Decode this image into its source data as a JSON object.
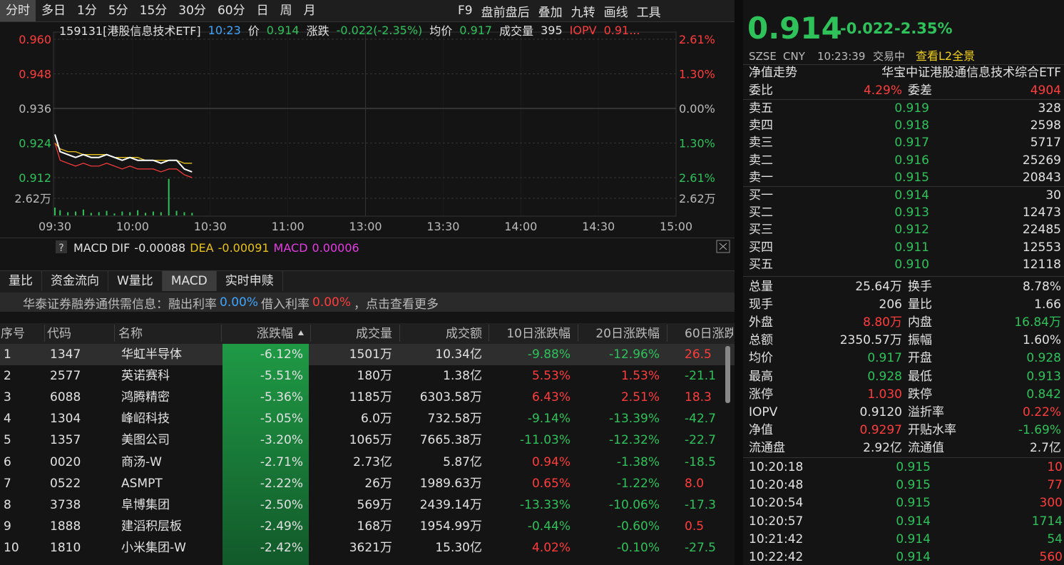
{
  "toolbar": {
    "tabs": [
      "分时",
      "多日",
      "1分",
      "5分",
      "15分",
      "30分",
      "60分",
      "日",
      "周",
      "月"
    ],
    "tools": [
      "F9",
      "盘前盘后",
      "叠加",
      "九转",
      "画线",
      "工具"
    ]
  },
  "chart_header": [
    {
      "text": "159131[港股信息技术ETF]",
      "color": "white"
    },
    {
      "text": "10:23",
      "color": "blue"
    },
    {
      "text": "价",
      "color": "white"
    },
    {
      "text": "0.914",
      "color": "green"
    },
    {
      "text": "涨跌",
      "color": "white"
    },
    {
      "text": "-0.022(-2.35%)",
      "color": "green"
    },
    {
      "text": "均价",
      "color": "white"
    },
    {
      "text": "0.917",
      "color": "green"
    },
    {
      "text": "成交量",
      "color": "white"
    },
    {
      "text": "395",
      "color": "white"
    },
    {
      "text": "IOPV",
      "color": "red"
    },
    {
      "text": "0.91...",
      "color": "red"
    }
  ],
  "intraday": {
    "ylim": [
      0.912,
      0.96
    ],
    "yticks": [
      {
        "value": 0.96,
        "label": "0.960"
      },
      {
        "value": 0.948,
        "label": "0.948"
      },
      {
        "value": 0.936,
        "label": "0.936"
      },
      {
        "value": 0.924,
        "label": "0.924"
      },
      {
        "value": 0.912,
        "label": "0.912"
      }
    ],
    "right_labels": [
      "2.61%",
      "1.30%",
      "0.00%",
      "1.30%",
      "2.61%"
    ],
    "xlim": [
      0,
      240
    ],
    "xticks": [
      {
        "value": 0,
        "label": "09:30"
      },
      {
        "value": 30,
        "label": "10:00"
      },
      {
        "value": 60,
        "label": "10:30"
      },
      {
        "value": 90,
        "label": "11:00"
      },
      {
        "value": 120,
        "label": "13:00"
      },
      {
        "value": 150,
        "label": "13:30"
      },
      {
        "value": 180,
        "label": "14:00"
      },
      {
        "value": 210,
        "label": "14:30"
      },
      {
        "value": 240,
        "label": "15:00"
      }
    ],
    "volume_tick": {
      "value": 2.62,
      "label": "2.62万"
    },
    "x": [
      0,
      2,
      5,
      8,
      11,
      14,
      17,
      20,
      23,
      26,
      29,
      32,
      35,
      38,
      41,
      44,
      47,
      50,
      53
    ],
    "price": [
      0.927,
      0.921,
      0.92,
      0.919,
      0.92,
      0.919,
      0.919,
      0.92,
      0.919,
      0.918,
      0.919,
      0.918,
      0.918,
      0.918,
      0.917,
      0.918,
      0.918,
      0.915,
      0.914
    ],
    "average": [
      0.924,
      0.922,
      0.921,
      0.921,
      0.92,
      0.92,
      0.92,
      0.92,
      0.919,
      0.919,
      0.919,
      0.919,
      0.918,
      0.918,
      0.918,
      0.918,
      0.918,
      0.917,
      0.917
    ],
    "iopv": [
      0.924,
      0.918,
      0.917,
      0.916,
      0.917,
      0.916,
      0.916,
      0.917,
      0.916,
      0.915,
      0.916,
      0.915,
      0.915,
      0.915,
      0.914,
      0.915,
      0.915,
      0.913,
      0.912
    ],
    "volume": [
      1.2,
      0.8,
      0.5,
      0.6,
      0.9,
      0.4,
      0.5,
      0.7,
      0.3,
      0.6,
      0.5,
      0.8,
      0.4,
      0.6,
      0.5,
      5.6,
      0.7,
      0.5,
      0.4
    ]
  },
  "macd": {
    "label": "MACD DIF",
    "dif": "-0.00088",
    "dea_label": "DEA",
    "dea": "-0.00091",
    "macd_label": "MACD",
    "macd": "0.00006"
  },
  "bottom_tabs": [
    "量比",
    "资金流向",
    "W量比",
    "MACD",
    "实时申赎"
  ],
  "info_bar": {
    "lead": "华泰证券融券通供需信息：融出利率",
    "lend_rate": "0.00%",
    "borrow_label": "借入利率",
    "borrow_rate": "0.00%",
    "more": "，点击查看更多"
  },
  "table": {
    "columns": [
      "序号",
      "代码",
      "名称",
      "涨跌幅",
      "成交量",
      "成交额",
      "10日涨跌幅",
      "20日涨跌幅",
      "60日涨跌"
    ],
    "rows": [
      [
        "1",
        "1347",
        "华虹半导体",
        "-6.12%",
        "1501万",
        "10.34亿",
        "-9.88%",
        "-12.96%",
        "26.5"
      ],
      [
        "2",
        "2577",
        "英诺赛科",
        "-5.51%",
        "180万",
        "1.38亿",
        "5.53%",
        "1.53%",
        "-21.1"
      ],
      [
        "3",
        "6088",
        "鸿腾精密",
        "-5.36%",
        "1185万",
        "6303.58万",
        "6.43%",
        "2.51%",
        "18.3"
      ],
      [
        "4",
        "1304",
        "峰岹科技",
        "-5.05%",
        "6.0万",
        "732.58万",
        "-9.14%",
        "-13.39%",
        "-42.7"
      ],
      [
        "5",
        "1357",
        "美图公司",
        "-3.20%",
        "1065万",
        "7665.38万",
        "-11.03%",
        "-12.32%",
        "-22.7"
      ],
      [
        "6",
        "0020",
        "商汤-W",
        "-2.71%",
        "2.73亿",
        "5.87亿",
        "0.94%",
        "-1.38%",
        "-18.5"
      ],
      [
        "7",
        "0522",
        "ASMPT",
        "-2.22%",
        "26万",
        "1989.63万",
        "0.65%",
        "-1.22%",
        "8.0"
      ],
      [
        "8",
        "3738",
        "阜博集团",
        "-2.50%",
        "569万",
        "2439.14万",
        "-13.33%",
        "-10.06%",
        "-17.3"
      ],
      [
        "9",
        "1888",
        "建滔积层板",
        "-2.49%",
        "168万",
        "1954.99万",
        "-0.44%",
        "-0.60%",
        "0.5"
      ],
      [
        "10",
        "1810",
        "小米集团-W",
        "-2.42%",
        "3621万",
        "15.30亿",
        "4.02%",
        "-0.10%",
        "-27.5"
      ]
    ]
  },
  "quote": {
    "price": "0.914",
    "change": "-0.022",
    "change_pct": "-2.35%",
    "exchange": "SZSE",
    "currency": "CNY",
    "time": "10:23:39",
    "status": "交易中",
    "l2_link": "查看L2全景",
    "nav_label": "净值走势",
    "fund_name": "华宝中证港股通信息技术综合ETF"
  },
  "order_ratio": {
    "label": "委比",
    "value": "4.29%",
    "diff_label": "委差",
    "diff": "4904"
  },
  "asks": [
    [
      "卖五",
      "0.919",
      "328"
    ],
    [
      "卖四",
      "0.918",
      "2598"
    ],
    [
      "卖三",
      "0.917",
      "5717"
    ],
    [
      "卖二",
      "0.916",
      "25269"
    ],
    [
      "卖一",
      "0.915",
      "20843"
    ]
  ],
  "bids": [
    [
      "买一",
      "0.914",
      "30"
    ],
    [
      "买二",
      "0.913",
      "12473"
    ],
    [
      "买三",
      "0.912",
      "22485"
    ],
    [
      "买四",
      "0.911",
      "12553"
    ],
    [
      "买五",
      "0.910",
      "12118"
    ]
  ],
  "stats": [
    [
      {
        "label": "总量",
        "value": "25.64万",
        "color": "white"
      },
      {
        "label": "换手",
        "value": "8.78%",
        "color": "white"
      }
    ],
    [
      {
        "label": "现手",
        "value": "206",
        "color": "white"
      },
      {
        "label": "量比",
        "value": "1.66",
        "color": "white"
      }
    ],
    [
      {
        "label": "外盘",
        "value": "8.80万",
        "color": "red"
      },
      {
        "label": "内盘",
        "value": "16.84万",
        "color": "green"
      }
    ],
    [
      {
        "label": "总额",
        "value": "2350.57万",
        "color": "white"
      },
      {
        "label": "振幅",
        "value": "1.60%",
        "color": "white"
      }
    ],
    [
      {
        "label": "均价",
        "value": "0.917",
        "color": "green"
      },
      {
        "label": "开盘",
        "value": "0.928",
        "color": "green"
      }
    ],
    [
      {
        "label": "最高",
        "value": "0.928",
        "color": "green"
      },
      {
        "label": "最低",
        "value": "0.913",
        "color": "green"
      }
    ],
    [
      {
        "label": "涨停",
        "value": "1.030",
        "color": "red"
      },
      {
        "label": "跌停",
        "value": "0.842",
        "color": "green"
      }
    ],
    [
      {
        "label": "IOPV",
        "value": "0.9120",
        "color": "white"
      },
      {
        "label": "溢折率",
        "value": "0.22%",
        "color": "red"
      }
    ],
    [
      {
        "label": "净值",
        "value": "0.9297",
        "color": "red"
      },
      {
        "label": "开贴水率",
        "value": "-1.69%",
        "color": "green"
      }
    ],
    [
      {
        "label": "流通盘",
        "value": "2.92亿",
        "color": "white"
      },
      {
        "label": "流通值",
        "value": "2.7亿",
        "color": "white"
      }
    ]
  ],
  "trades": [
    {
      "time": "10:20:18",
      "price": "0.915",
      "volume": "10",
      "color": "red"
    },
    {
      "time": "10:20:48",
      "price": "0.915",
      "volume": "77",
      "color": "red"
    },
    {
      "time": "10:20:54",
      "price": "0.915",
      "volume": "300",
      "color": "red"
    },
    {
      "time": "10:20:57",
      "price": "0.914",
      "volume": "1714",
      "color": "green"
    },
    {
      "time": "10:21:42",
      "price": "0.914",
      "volume": "54",
      "color": "green"
    },
    {
      "time": "10:22:42",
      "price": "0.914",
      "volume": "560",
      "color": "red"
    }
  ]
}
